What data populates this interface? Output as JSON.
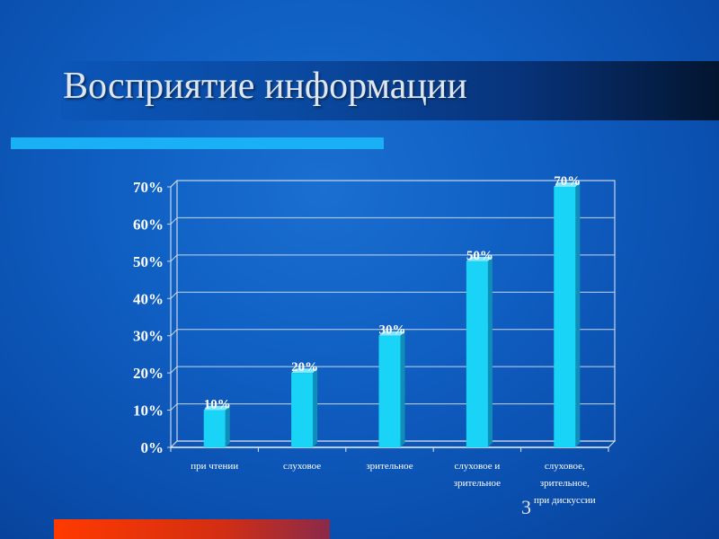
{
  "slide": {
    "title": "Восприятие информации",
    "page_number": "3"
  },
  "colors": {
    "background": "#1060c4",
    "accent_bar": "#1ab0f6",
    "bottom_band": "#ff3a00",
    "bar_fill": "#1ad4f8"
  },
  "chart_data": {
    "type": "bar",
    "title": "",
    "xlabel": "",
    "ylabel": "",
    "categories": [
      [
        "при чтении"
      ],
      [
        "слуховое"
      ],
      [
        "зрительное"
      ],
      [
        "слуховое и",
        "зрительное"
      ],
      [
        "слуховое,",
        "зрительное,",
        "при дискуссии"
      ]
    ],
    "values": [
      10,
      20,
      30,
      50,
      70
    ],
    "value_labels": [
      "10%",
      "20%",
      "30%",
      "50%",
      "70%"
    ],
    "y_ticks": [
      "0%",
      "10%",
      "20%",
      "30%",
      "40%",
      "50%",
      "60%",
      "70%"
    ],
    "ylim": [
      0,
      70
    ],
    "grid": true,
    "legend": "none"
  }
}
